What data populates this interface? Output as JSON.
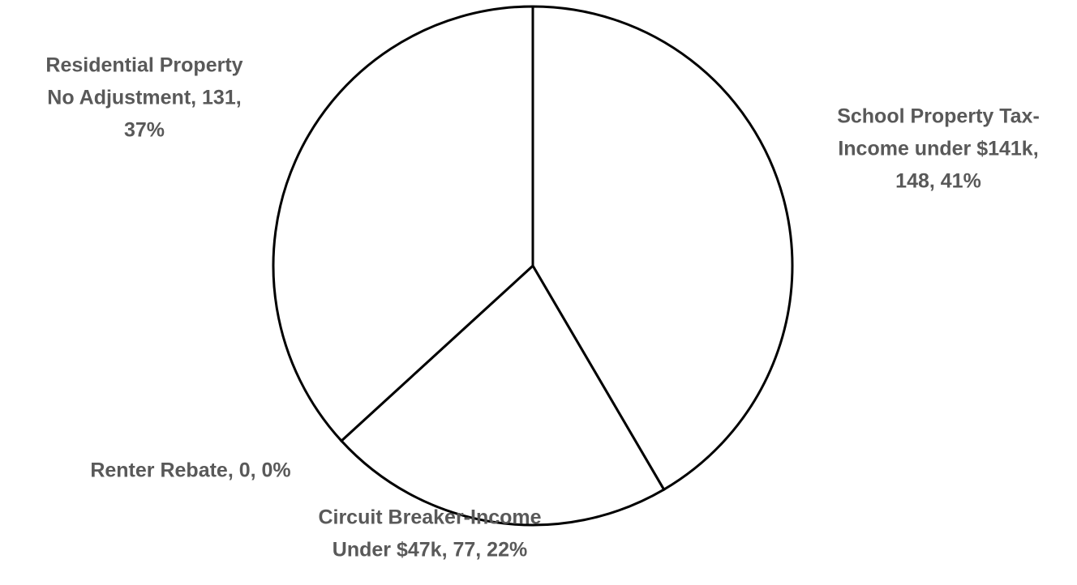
{
  "chart_data": {
    "type": "pie",
    "values": [
      148,
      77,
      0,
      131
    ],
    "data_labels": [
      [
        "School Property Tax-",
        "Income under $141k,",
        "148, 41%"
      ],
      [
        "Circuit Breaker-Income",
        "Under $47k, 77, 22%"
      ],
      [
        "Renter Rebate, 0, 0%"
      ],
      [
        "Residential Property",
        "No Adjustment, 131,",
        "37%"
      ]
    ],
    "color": "#ffffff",
    "edge_color": "#000000"
  }
}
